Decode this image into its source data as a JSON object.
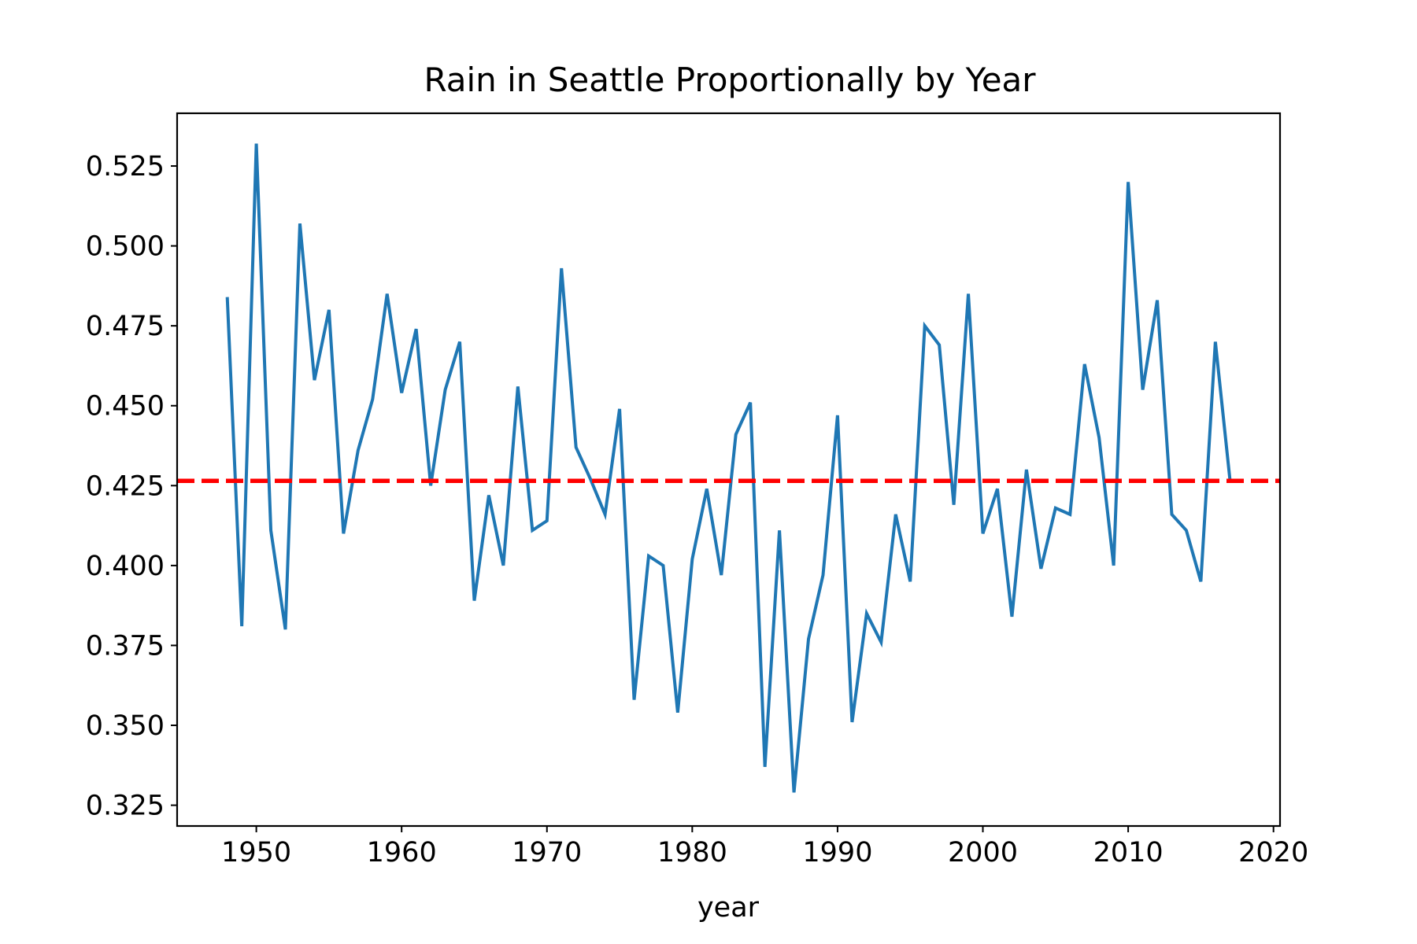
{
  "chart_data": {
    "type": "line",
    "title": "Rain in Seattle Proportionally by Year",
    "xlabel": "year",
    "ylabel": "",
    "xlim": [
      1944.55,
      2020.45
    ],
    "ylim": [
      0.3185,
      0.5415
    ],
    "grid": false,
    "x_ticks": [
      1950,
      1960,
      1970,
      1980,
      1990,
      2000,
      2010,
      2020
    ],
    "x_tick_labels": [
      "1950",
      "1960",
      "1970",
      "1980",
      "1990",
      "2000",
      "2010",
      "2020"
    ],
    "y_ticks": [
      0.325,
      0.35,
      0.375,
      0.4,
      0.425,
      0.45,
      0.475,
      0.5,
      0.525
    ],
    "y_tick_labels": [
      "0.325",
      "0.350",
      "0.375",
      "0.400",
      "0.425",
      "0.450",
      "0.475",
      "0.500",
      "0.525"
    ],
    "series": [
      {
        "color": "#1f77b4",
        "style": "solid",
        "x": [
          1948,
          1949,
          1950,
          1951,
          1952,
          1953,
          1954,
          1955,
          1956,
          1957,
          1958,
          1959,
          1960,
          1961,
          1962,
          1963,
          1964,
          1965,
          1966,
          1967,
          1968,
          1969,
          1970,
          1971,
          1972,
          1973,
          1974,
          1975,
          1976,
          1977,
          1978,
          1979,
          1980,
          1981,
          1982,
          1983,
          1984,
          1985,
          1986,
          1987,
          1988,
          1989,
          1990,
          1991,
          1992,
          1993,
          1994,
          1995,
          1996,
          1997,
          1998,
          1999,
          2000,
          2001,
          2002,
          2003,
          2004,
          2005,
          2006,
          2007,
          2008,
          2009,
          2010,
          2011,
          2012,
          2013,
          2014,
          2015,
          2016,
          2017
        ],
        "values": [
          0.484,
          0.381,
          0.532,
          0.411,
          0.38,
          0.507,
          0.458,
          0.48,
          0.41,
          0.436,
          0.452,
          0.485,
          0.454,
          0.474,
          0.425,
          0.455,
          0.47,
          0.389,
          0.422,
          0.4,
          0.456,
          0.411,
          0.414,
          0.493,
          0.437,
          0.427,
          0.416,
          0.449,
          0.358,
          0.403,
          0.4,
          0.354,
          0.402,
          0.424,
          0.397,
          0.441,
          0.451,
          0.337,
          0.411,
          0.329,
          0.377,
          0.397,
          0.447,
          0.351,
          0.385,
          0.376,
          0.416,
          0.395,
          0.475,
          0.469,
          0.419,
          0.485,
          0.41,
          0.424,
          0.384,
          0.43,
          0.399,
          0.418,
          0.416,
          0.463,
          0.44,
          0.4,
          0.52,
          0.455,
          0.483,
          0.416,
          0.411,
          0.395,
          0.47,
          0.427
        ]
      },
      {
        "color": "#ff0000",
        "style": "dashed",
        "x": [
          1944.55,
          2020.45
        ],
        "values": [
          0.4265,
          0.4265
        ]
      }
    ]
  }
}
